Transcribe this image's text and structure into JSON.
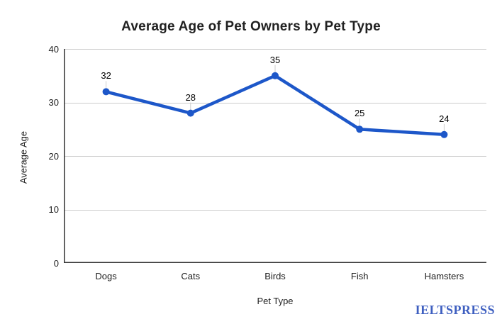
{
  "watermark": {
    "text": "IELTSPRESS"
  },
  "chart_data": {
    "type": "line",
    "title": "Average Age of Pet Owners by Pet Type",
    "xlabel": "Pet Type",
    "ylabel": "Average Age",
    "categories": [
      "Dogs",
      "Cats",
      "Birds",
      "Fish",
      "Hamsters"
    ],
    "series": [
      {
        "name": "Average Age",
        "values": [
          32,
          28,
          35,
          25,
          24
        ]
      }
    ],
    "data_labels": [
      "32",
      "28",
      "35",
      "25",
      "24"
    ],
    "ylim": [
      0,
      40
    ],
    "yticks": [
      0,
      10,
      20,
      30,
      40
    ],
    "grid": true,
    "legend": "none",
    "colors": {
      "line": "#1d57c9",
      "point": "#1d57c9",
      "gridline": "#cccccc",
      "leader_line": "#cccccc",
      "axis_line": "#333333",
      "tick_text": "#212121",
      "data_label_text": "#000000",
      "title_text": "#212121",
      "watermark_text": "#3e5fc0",
      "background": "#ffffff"
    }
  }
}
